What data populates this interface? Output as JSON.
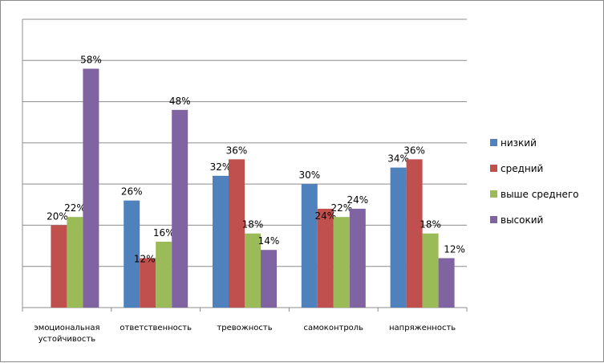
{
  "chart_data": {
    "type": "bar",
    "categories": [
      [
        "эмоциональная",
        "устойчивость"
      ],
      [
        "ответственность"
      ],
      [
        "тревожность"
      ],
      [
        "самоконтроль"
      ],
      [
        "напряженность"
      ]
    ],
    "series": [
      {
        "name": "низкий",
        "color": "#4f81bd",
        "values": [
          null,
          26,
          32,
          30,
          34
        ]
      },
      {
        "name": "средний",
        "color": "#c0504d",
        "values": [
          20,
          12,
          36,
          24,
          36
        ]
      },
      {
        "name": "выше среднего",
        "color": "#9bbb59",
        "values": [
          22,
          16,
          18,
          22,
          18
        ]
      },
      {
        "name": "высокий",
        "color": "#8064a2",
        "values": [
          58,
          48,
          14,
          24,
          12
        ]
      }
    ],
    "value_suffix": "%",
    "ylim": [
      0,
      70
    ],
    "y_grid_step": 10,
    "grid": true,
    "legend": "right"
  }
}
